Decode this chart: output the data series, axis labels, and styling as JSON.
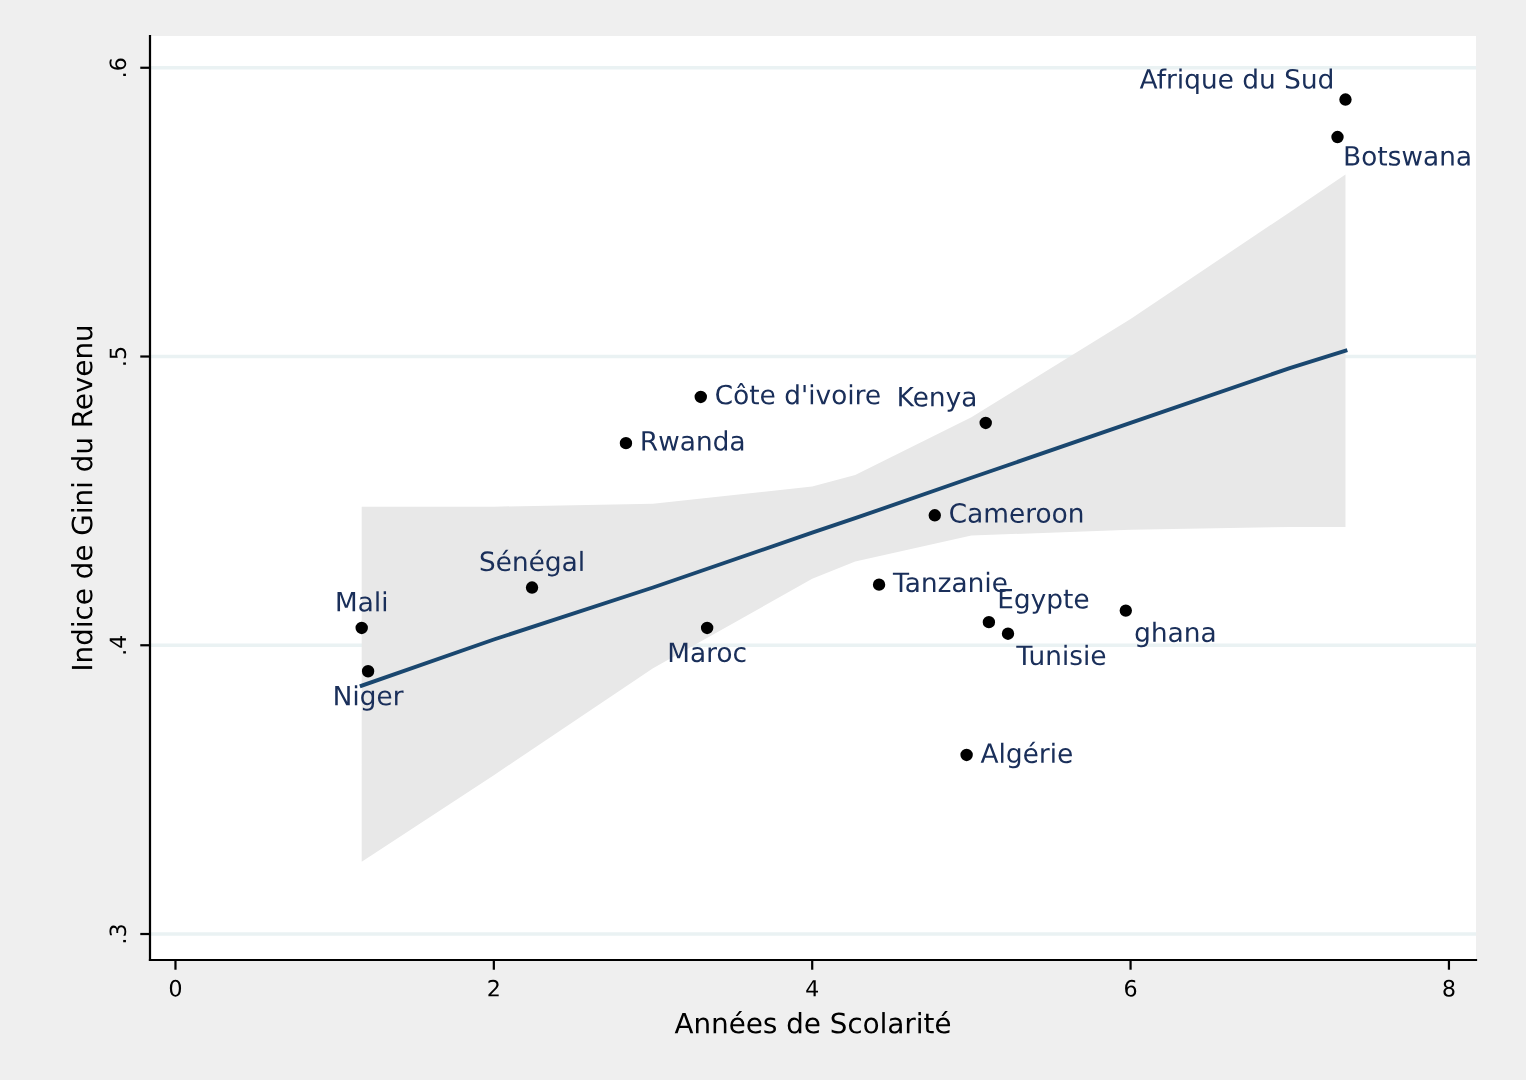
{
  "chart_data": {
    "type": "scatter",
    "xlabel": "Années de Scolarité",
    "ylabel": "Indice de Gini du Revenu",
    "xlim": [
      -0.16,
      8.17
    ],
    "ylim": [
      0.291,
      0.611
    ],
    "xticks": [
      0,
      2,
      4,
      6,
      8
    ],
    "yticks": [
      {
        "value": 0.3,
        "label": ".3"
      },
      {
        "value": 0.4,
        "label": ".4"
      },
      {
        "value": 0.5,
        "label": ".5"
      },
      {
        "value": 0.6,
        "label": ".6"
      }
    ],
    "grid": "y",
    "marker": "circle",
    "series": [
      {
        "type": "line",
        "marker": "none",
        "color": "#1a476f",
        "x": [
          1.17,
          2,
          3,
          4,
          4.27,
          5,
          6,
          7,
          7.35
        ],
        "values": [
          0.386,
          0.402,
          0.42,
          0.439,
          0.444,
          0.458,
          0.477,
          0.496,
          0.502
        ],
        "lower": [
          0.325,
          0.355,
          0.392,
          0.423,
          0.429,
          0.438,
          0.44,
          0.441,
          0.441
        ],
        "upper": [
          0.448,
          0.448,
          0.449,
          0.455,
          0.459,
          0.479,
          0.513,
          0.55,
          0.563
        ]
      },
      {
        "color": "#000000",
        "x": [
          7.35,
          7.3,
          3.3,
          5.09,
          2.83,
          4.77,
          2.24,
          4.42,
          1.17,
          3.34,
          5.11,
          5.23,
          5.97,
          1.21,
          4.97
        ],
        "values": [
          0.589,
          0.576,
          0.486,
          0.477,
          0.47,
          0.445,
          0.42,
          0.421,
          0.406,
          0.406,
          0.408,
          0.404,
          0.412,
          0.391,
          0.362
        ]
      }
    ],
    "annotations": [
      {
        "text": "Afrique du Sud",
        "x": 7.35,
        "y": 0.589
      },
      {
        "text": "Botswana",
        "x": 7.3,
        "y": 0.576
      },
      {
        "text": "Côte d'ivoire",
        "x": 3.3,
        "y": 0.486
      },
      {
        "text": "Kenya",
        "x": 5.09,
        "y": 0.477
      },
      {
        "text": "Rwanda",
        "x": 2.83,
        "y": 0.47
      },
      {
        "text": "Cameroon",
        "x": 4.77,
        "y": 0.445
      },
      {
        "text": "Sénégal",
        "x": 2.24,
        "y": 0.42
      },
      {
        "text": "Tanzanie",
        "x": 4.42,
        "y": 0.421
      },
      {
        "text": "Mali",
        "x": 1.17,
        "y": 0.406
      },
      {
        "text": "Maroc",
        "x": 3.34,
        "y": 0.406
      },
      {
        "text": "Egypte",
        "x": 5.11,
        "y": 0.408
      },
      {
        "text": "Tunisie",
        "x": 5.23,
        "y": 0.404
      },
      {
        "text": "ghana",
        "x": 5.97,
        "y": 0.412
      },
      {
        "text": "Niger",
        "x": 1.21,
        "y": 0.391
      },
      {
        "text": "Algérie",
        "x": 4.97,
        "y": 0.362
      }
    ]
  }
}
